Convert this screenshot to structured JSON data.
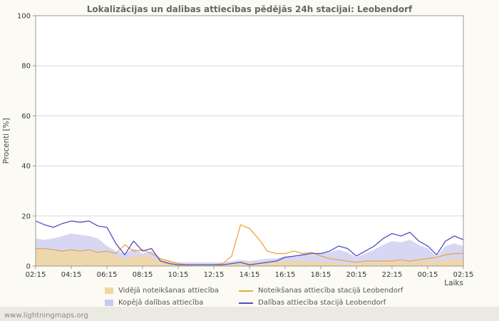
{
  "header": {
    "title": "Lokalizācijas un dalības attiecības pēdējās 24h stacijai: Leobendorf"
  },
  "watermark": "www.lightningmaps.org",
  "chart_data": {
    "type": "area",
    "title": "Lokalizācijas un dalības attiecības pēdējās 24h stacijai: Leobendorf",
    "xlabel": "Laiks",
    "ylabel": "Procenti  [%]",
    "ylim": [
      0,
      100
    ],
    "yticks": [
      0,
      20,
      40,
      60,
      80,
      100
    ],
    "xtick_labels": [
      "02:15",
      "04:15",
      "06:15",
      "08:15",
      "10:15",
      "12:15",
      "14:15",
      "16:15",
      "18:15",
      "20:15",
      "22:15",
      "00:15",
      "02:15"
    ],
    "grid": true,
    "legend_position": "bottom",
    "plot_bg": "#ffffff",
    "grid_color": "#d8d8d8",
    "frame_color": "#999999",
    "series": [
      {
        "name": "Kopējā dalības attiecība",
        "kind": "area",
        "color": "#c9c9f0",
        "opacity": 0.75,
        "values": [
          11,
          10.5,
          11,
          12,
          13,
          12.5,
          12,
          11,
          8,
          6,
          5,
          7,
          5,
          6,
          3,
          2,
          1.5,
          1.5,
          1.5,
          1.5,
          1.5,
          1.5,
          2,
          2.5,
          2,
          2.5,
          3,
          3,
          4,
          4,
          4.5,
          4.5,
          5,
          5.5,
          6.5,
          5.5,
          3.5,
          5,
          6.5,
          8.5,
          10,
          9.5,
          10.5,
          8.5,
          7,
          4,
          8,
          9,
          8
        ]
      },
      {
        "name": "Vidējā noteikšanas attiecība",
        "kind": "area",
        "color": "#f2d79f",
        "opacity": 0.85,
        "values": [
          7,
          6.5,
          6,
          5.5,
          6,
          5.5,
          6,
          5,
          5.5,
          4,
          3,
          4,
          4.5,
          3.5,
          2.5,
          2,
          1,
          1,
          0.8,
          0.8,
          0.8,
          0.8,
          1,
          1.5,
          1.5,
          1.5,
          1.5,
          1.5,
          2,
          2,
          2,
          2,
          1.5,
          1.5,
          1,
          1,
          1,
          1.5,
          1.5,
          1.5,
          2,
          2,
          1.5,
          2,
          2,
          2,
          2.5,
          3,
          3
        ]
      },
      {
        "name": "Noteikšanas attiecība stacijā Leobendorf",
        "kind": "line",
        "color": "#eda63f",
        "values": [
          7,
          7,
          6.5,
          6,
          6.5,
          6,
          6.5,
          5.5,
          6,
          5,
          8.5,
          6,
          6.5,
          5,
          3,
          2,
          1,
          0.5,
          0.5,
          0.5,
          0.5,
          1,
          4,
          16.5,
          15,
          11,
          6,
          5,
          5,
          6,
          5,
          5.5,
          4,
          3,
          2.5,
          2,
          1.5,
          2,
          2,
          2,
          2,
          2.5,
          2,
          2.5,
          3,
          3.5,
          4.5,
          5,
          5
        ]
      },
      {
        "name": "Dalības attiecība stacijā Leobendorf",
        "kind": "line",
        "color": "#5050c0",
        "values": [
          18,
          16.5,
          15.5,
          17,
          18,
          17.5,
          18,
          16,
          15.5,
          9,
          4.5,
          10,
          6,
          7,
          2,
          1,
          0.5,
          0.5,
          0.5,
          0.5,
          0.5,
          0.5,
          1,
          1.5,
          0.5,
          1,
          1.5,
          2,
          3.5,
          4,
          4.5,
          5,
          5,
          6,
          8,
          7,
          4,
          6,
          8,
          11,
          13,
          12,
          13.5,
          10,
          8,
          4.5,
          10,
          12,
          10.5
        ]
      }
    ]
  },
  "legend": {
    "items": [
      {
        "label": "Vidējā noteikšanas attiecība",
        "kind": "area",
        "color": "#f2d79f"
      },
      {
        "label": "Noteikšanas attiecība stacijā Leobendorf",
        "kind": "line",
        "color": "#eda63f"
      },
      {
        "label": "Kopējā dalības attiecība",
        "kind": "area",
        "color": "#c9c9f0"
      },
      {
        "label": "Dalības attiecība stacijā Leobendorf",
        "kind": "line",
        "color": "#5050c0"
      }
    ]
  }
}
